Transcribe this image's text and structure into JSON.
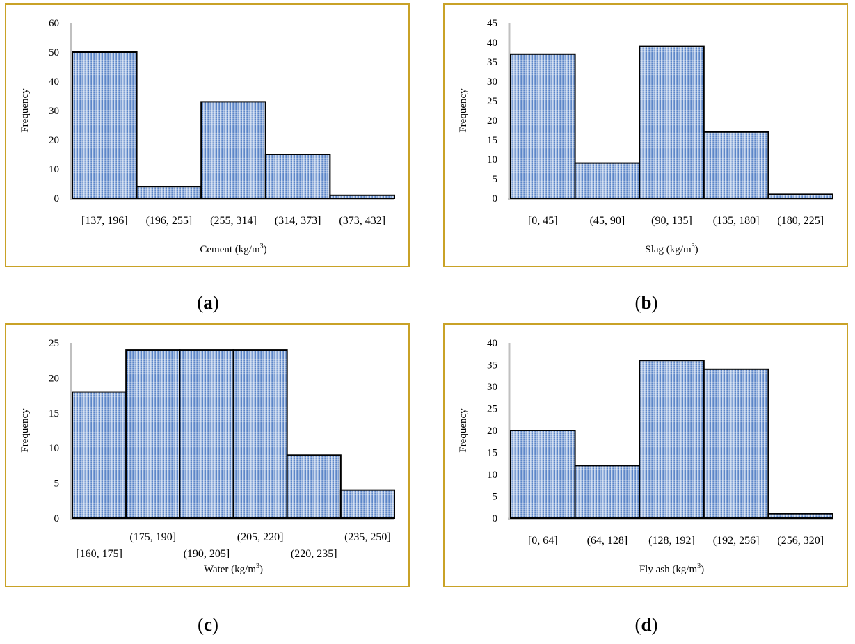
{
  "chart_data": [
    {
      "type": "bar",
      "title": "",
      "xlabel": "Cement (kg/m",
      "xlabel_sup": "3",
      "xlabel_end": ")",
      "ylabel": "Frequency",
      "categories": [
        "[137, 196]",
        "(196, 255]",
        "(255, 314]",
        "(314, 373]",
        "(373, 432]"
      ],
      "values": [
        50,
        4,
        33,
        15,
        1
      ],
      "ylim": [
        0,
        60
      ],
      "yticks": [
        0,
        10,
        20,
        30,
        40,
        50,
        60
      ],
      "label_layout": "single",
      "panel_label": "a"
    },
    {
      "type": "bar",
      "title": "",
      "xlabel": "Slag (kg/m",
      "xlabel_sup": "3",
      "xlabel_end": ")",
      "ylabel": "Frequency",
      "categories": [
        "[0, 45]",
        "(45, 90]",
        "(90, 135]",
        "(135, 180]",
        "(180, 225]"
      ],
      "values": [
        37,
        9,
        39,
        17,
        1
      ],
      "ylim": [
        0,
        45
      ],
      "yticks": [
        0,
        5,
        10,
        15,
        20,
        25,
        30,
        35,
        40,
        45
      ],
      "label_layout": "single",
      "panel_label": "b"
    },
    {
      "type": "bar",
      "title": "",
      "xlabel": "Water (kg/m",
      "xlabel_sup": "3",
      "xlabel_end": ")",
      "ylabel": "Frequency",
      "categories": [
        "[160, 175]",
        "(175, 190]",
        "(190, 205]",
        "(205, 220]",
        "(220, 235]",
        "(235, 250]"
      ],
      "values": [
        18,
        24,
        24,
        24,
        9,
        4
      ],
      "ylim": [
        0,
        25
      ],
      "yticks": [
        0,
        5,
        10,
        15,
        20,
        25
      ],
      "label_layout": "staggered",
      "panel_label": "c"
    },
    {
      "type": "bar",
      "title": "",
      "xlabel": "Fly ash (kg/m",
      "xlabel_sup": "3",
      "xlabel_end": ")",
      "ylabel": "Frequency",
      "categories": [
        "[0, 64]",
        "(64, 128]",
        "(128, 192]",
        "(192, 256]",
        "(256, 320]"
      ],
      "values": [
        20,
        12,
        36,
        34,
        1
      ],
      "ylim": [
        0,
        40
      ],
      "yticks": [
        0,
        5,
        10,
        15,
        20,
        25,
        30,
        35,
        40
      ],
      "label_layout": "single",
      "panel_label": "d"
    }
  ],
  "colors": {
    "frame": "#c9a227",
    "bar_light": "#dce6f4",
    "bar_dark": "#4a78c2",
    "bar_edge": "#000000",
    "axis": "#c0c0c0"
  }
}
